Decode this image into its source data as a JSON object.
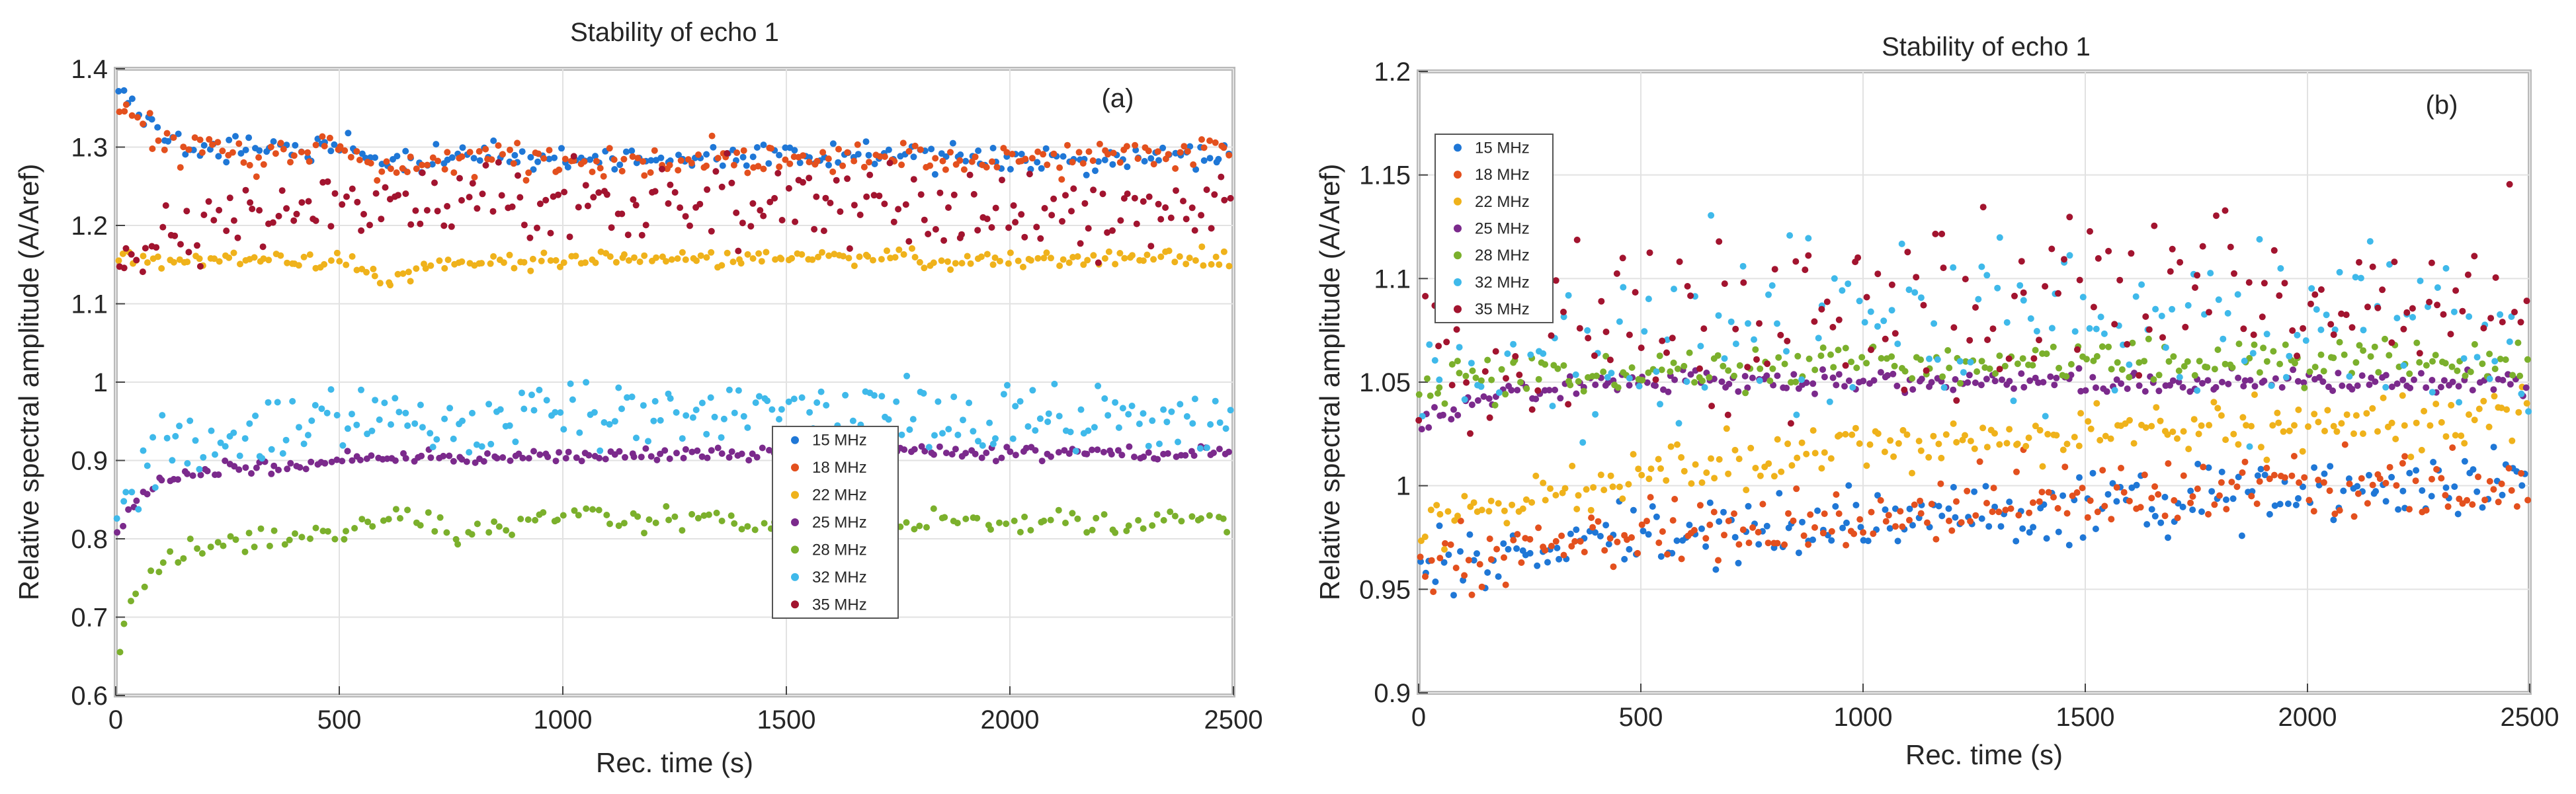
{
  "colors": {
    "15 MHz": "#1f77d6",
    "18 MHz": "#e3501e",
    "22 MHz": "#efb21b",
    "25 MHz": "#7b2a8c",
    "28 MHz": "#7bb02c",
    "32 MHz": "#3fb9ea",
    "35 MHz": "#a2142f",
    "axis": "#444444",
    "grid": "#e2e2e2",
    "frame": "#b9b9b9"
  },
  "chart_data": [
    {
      "type": "scatter",
      "id": "a",
      "panel_label": "(a)",
      "title": "Stability of echo 1",
      "xlabel": "Rec. time (s)",
      "ylabel": "Relative spectral amplitude (A/Aref)",
      "xlim": [
        0,
        2500
      ],
      "ylim": [
        0.6,
        1.4
      ],
      "xticks": [
        0,
        500,
        1000,
        1500,
        2000,
        2500
      ],
      "xtick_labels": [
        "0",
        "500",
        "1000",
        "1500",
        "2000",
        "2500"
      ],
      "yticks": [
        0.6,
        0.7,
        0.8,
        0.9,
        1.0,
        1.1,
        1.2,
        1.3,
        1.4
      ],
      "ytick_labels": [
        "0.6",
        "0.7",
        "0.8",
        "0.9",
        "1",
        "1.1",
        "1.2",
        "1.3",
        "1.4"
      ],
      "grid": true,
      "legend_position": "center-right",
      "legend": [
        "15 MHz",
        "18 MHz",
        "22 MHz",
        "25 MHz",
        "28 MHz",
        "32 MHz",
        "35 MHz"
      ],
      "series": [
        {
          "name": "15 MHz",
          "x": [
            0,
            60,
            150,
            300,
            500,
            600,
            800,
            1000,
            1500,
            2000,
            2500
          ],
          "y": [
            1.38,
            1.34,
            1.3,
            1.295,
            1.3,
            1.28,
            1.29,
            1.285,
            1.29,
            1.285,
            1.29
          ],
          "spread": 0.012,
          "n": 220
        },
        {
          "name": "18 MHz",
          "x": [
            0,
            60,
            150,
            300,
            500,
            600,
            800,
            1000,
            1500,
            2000,
            2500
          ],
          "y": [
            1.36,
            1.33,
            1.3,
            1.29,
            1.3,
            1.27,
            1.29,
            1.28,
            1.285,
            1.285,
            1.29
          ],
          "spread": 0.015,
          "n": 220
        },
        {
          "name": "22 MHz",
          "x": [
            0,
            100,
            500,
            600,
            700,
            1000,
            1500,
            2000,
            2500
          ],
          "y": [
            1.16,
            1.155,
            1.155,
            1.13,
            1.15,
            1.155,
            1.16,
            1.155,
            1.16
          ],
          "spread": 0.008,
          "n": 220
        },
        {
          "name": "25 MHz",
          "x": [
            0,
            40,
            100,
            200,
            400,
            600,
            1000,
            1500,
            2000,
            2500
          ],
          "y": [
            0.8,
            0.85,
            0.875,
            0.885,
            0.895,
            0.905,
            0.905,
            0.91,
            0.91,
            0.91
          ],
          "spread": 0.006,
          "n": 220
        },
        {
          "name": "28 MHz",
          "x": [
            0,
            20,
            60,
            150,
            300,
            500,
            600,
            800,
            1000,
            1500,
            2000,
            2500
          ],
          "y": [
            0.62,
            0.7,
            0.75,
            0.78,
            0.8,
            0.81,
            0.83,
            0.81,
            0.83,
            0.82,
            0.82,
            0.825
          ],
          "spread": 0.012,
          "n": 170
        },
        {
          "name": "32 MHz",
          "x": [
            0,
            30,
            80,
            200,
            500,
            1000,
            1500,
            2000,
            2500
          ],
          "y": [
            0.82,
            0.86,
            0.9,
            0.93,
            0.95,
            0.96,
            0.96,
            0.955,
            0.95
          ],
          "spread": 0.03,
          "n": 230
        },
        {
          "name": "35 MHz",
          "x": [
            0,
            30,
            100,
            300,
            600,
            1000,
            1500,
            2000,
            2500
          ],
          "y": [
            1.13,
            1.15,
            1.19,
            1.22,
            1.22,
            1.225,
            1.23,
            1.22,
            1.22
          ],
          "spread": 0.035,
          "n": 230
        }
      ]
    },
    {
      "type": "scatter",
      "id": "b",
      "panel_label": "(b)",
      "title": "Stability of echo 1",
      "xlabel": "Rec. time (s)",
      "ylabel": "Relative spectral amplitude (A/Aref)",
      "xlim": [
        0,
        2500
      ],
      "ylim": [
        0.9,
        1.2
      ],
      "xticks": [
        0,
        500,
        1000,
        1500,
        2000,
        2500
      ],
      "xtick_labels": [
        "0",
        "500",
        "1000",
        "1500",
        "2000",
        "2500"
      ],
      "yticks": [
        0.9,
        0.95,
        1.0,
        1.05,
        1.1,
        1.15,
        1.2
      ],
      "ytick_labels": [
        "0.9",
        "0.95",
        "1",
        "1.05",
        "1.1",
        "1.15",
        "1.2"
      ],
      "grid": true,
      "legend_position": "top-left",
      "legend": [
        "15 MHz",
        "18 MHz",
        "22 MHz",
        "25 MHz",
        "28 MHz",
        "32 MHz",
        "35 MHz"
      ],
      "series": [
        {
          "name": "15 MHz",
          "x": [
            0,
            100,
            500,
            1000,
            1500,
            2000,
            2500
          ],
          "y": [
            0.96,
            0.965,
            0.975,
            0.985,
            0.99,
            0.995,
            1.0
          ],
          "spread": 0.012,
          "n": 230
        },
        {
          "name": "18 MHz",
          "x": [
            0,
            100,
            500,
            1000,
            1500,
            2000,
            2500
          ],
          "y": [
            0.955,
            0.965,
            0.975,
            0.985,
            0.995,
            1.0,
            1.0
          ],
          "spread": 0.012,
          "n": 230
        },
        {
          "name": "22 MHz",
          "x": [
            0,
            200,
            500,
            1000,
            1500,
            2000,
            2500
          ],
          "y": [
            0.985,
            0.99,
            1.005,
            1.02,
            1.025,
            1.03,
            1.035
          ],
          "spread": 0.009,
          "n": 230
        },
        {
          "name": "25 MHz",
          "x": [
            0,
            50,
            200,
            500,
            1000,
            2500
          ],
          "y": [
            1.03,
            1.035,
            1.045,
            1.05,
            1.05,
            1.05
          ],
          "spread": 0.004,
          "n": 230
        },
        {
          "name": "28 MHz",
          "x": [
            0,
            500,
            1000,
            1500,
            2500
          ],
          "y": [
            1.05,
            1.055,
            1.06,
            1.06,
            1.06
          ],
          "spread": 0.008,
          "n": 220
        },
        {
          "name": "32 MHz",
          "x": [
            0,
            500,
            1000,
            1500,
            2500
          ],
          "y": [
            1.06,
            1.07,
            1.075,
            1.075,
            1.075
          ],
          "spread": 0.03,
          "n": 180
        },
        {
          "name": "35 MHz",
          "x": [
            0,
            500,
            1000,
            1500,
            2500
          ],
          "y": [
            1.065,
            1.08,
            1.085,
            1.09,
            1.09
          ],
          "spread": 0.03,
          "n": 180
        }
      ]
    }
  ]
}
